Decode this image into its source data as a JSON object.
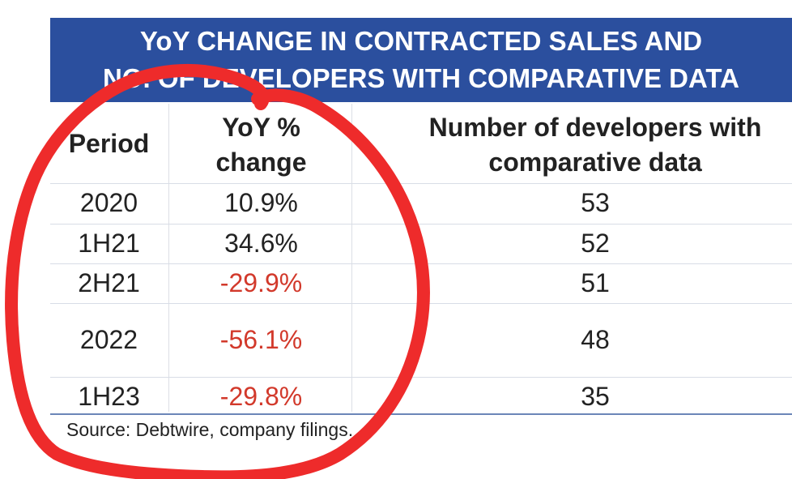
{
  "title": {
    "line1": "YoY CHANGE IN CONTRACTED SALES AND",
    "line2": "NO. OF DEVELOPERS WITH COMPARATIVE DATA"
  },
  "headers": {
    "period": "Period",
    "yoy_line1": "YoY %",
    "yoy_line2": "change",
    "devs_line1": "Number of developers with",
    "devs_line2": "comparative data"
  },
  "rows": [
    {
      "period": "2020",
      "yoy": "10.9%",
      "devs": "53",
      "negative": false
    },
    {
      "period": "1H21",
      "yoy": "34.6%",
      "devs": "52",
      "negative": false
    },
    {
      "period": "2H21",
      "yoy": "-29.9%",
      "devs": "51",
      "negative": true
    },
    {
      "period": "2022",
      "yoy": "-56.1%",
      "devs": "48",
      "negative": true
    },
    {
      "period": "1H23",
      "yoy": "-29.8%",
      "devs": "35",
      "negative": true
    }
  ],
  "source": "Source: Debtwire, company filings.",
  "colors": {
    "header_bg": "#2b4f9e",
    "negative": "#d2392b",
    "annotation": "#ee2b2b"
  }
}
